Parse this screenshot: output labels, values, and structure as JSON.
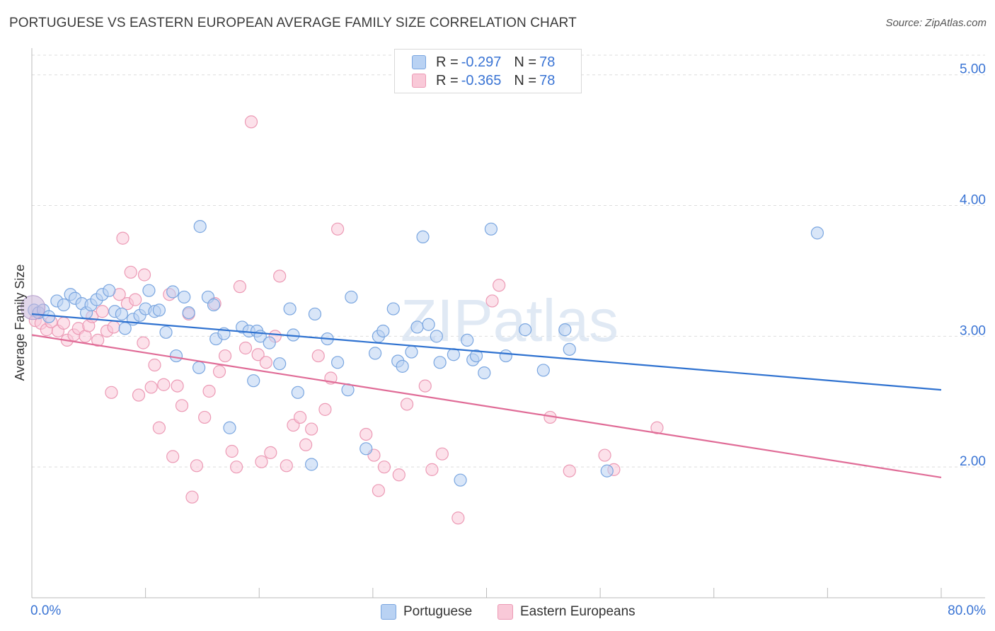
{
  "title": "PORTUGUESE VS EASTERN EUROPEAN AVERAGE FAMILY SIZE CORRELATION CHART",
  "source": "Source: ZipAtlas.com",
  "watermark": "ZIPatlas",
  "legend": {
    "r_label": "R = ",
    "n_label": "N = ",
    "rows": [
      {
        "r": "-0.297",
        "n": "78"
      },
      {
        "r": "-0.365",
        "n": "78"
      }
    ]
  },
  "bottom_legend": [
    "Portuguese",
    "Eastern Europeans"
  ],
  "colors": {
    "blue_fill": "#b9d2f3",
    "blue_stroke": "#7aa6e0",
    "blue_line": "#2f72d0",
    "pink_fill": "#f9c9d8",
    "pink_stroke": "#ec9ab5",
    "pink_line": "#e06c97",
    "axis_text": "#3a74d4",
    "grid": "#dddddd"
  },
  "chart_data": {
    "type": "scatter",
    "xlabel": "",
    "ylabel": "Average Family Size",
    "xlim": [
      0,
      80
    ],
    "ylim": [
      1.0,
      5.15
    ],
    "x_tick_labels": [
      "0.0%",
      "80.0%"
    ],
    "y_ticks": [
      2.0,
      3.0,
      4.0,
      5.0
    ],
    "y_tick_labels": [
      "2.00",
      "3.00",
      "4.00",
      "5.00"
    ],
    "series": [
      {
        "name": "Portuguese",
        "trend": {
          "x": [
            0,
            80
          ],
          "y": [
            3.17,
            2.59
          ]
        },
        "points": [
          [
            0.2,
            3.2
          ],
          [
            0.6,
            3.18
          ],
          [
            1.0,
            3.2
          ],
          [
            1.5,
            3.15
          ],
          [
            2.2,
            3.27
          ],
          [
            2.8,
            3.24
          ],
          [
            3.4,
            3.32
          ],
          [
            3.8,
            3.29
          ],
          [
            4.4,
            3.25
          ],
          [
            4.8,
            3.18
          ],
          [
            5.2,
            3.24
          ],
          [
            5.7,
            3.28
          ],
          [
            6.2,
            3.32
          ],
          [
            6.8,
            3.35
          ],
          [
            7.3,
            3.19
          ],
          [
            7.9,
            3.17
          ],
          [
            8.2,
            3.06
          ],
          [
            8.9,
            3.13
          ],
          [
            9.5,
            3.16
          ],
          [
            10.0,
            3.21
          ],
          [
            10.3,
            3.35
          ],
          [
            10.8,
            3.19
          ],
          [
            11.2,
            3.2
          ],
          [
            11.8,
            3.03
          ],
          [
            12.4,
            3.34
          ],
          [
            12.7,
            2.85
          ],
          [
            13.4,
            3.3
          ],
          [
            13.8,
            3.18
          ],
          [
            14.7,
            2.76
          ],
          [
            14.8,
            3.84
          ],
          [
            15.5,
            3.3
          ],
          [
            16.0,
            3.24
          ],
          [
            16.2,
            2.98
          ],
          [
            16.9,
            3.02
          ],
          [
            17.4,
            2.3
          ],
          [
            18.5,
            3.07
          ],
          [
            19.1,
            3.04
          ],
          [
            19.5,
            2.66
          ],
          [
            19.8,
            3.04
          ],
          [
            20.1,
            3.0
          ],
          [
            20.9,
            2.95
          ],
          [
            21.8,
            2.79
          ],
          [
            22.7,
            3.21
          ],
          [
            23.0,
            3.01
          ],
          [
            23.4,
            2.57
          ],
          [
            24.6,
            2.02
          ],
          [
            24.9,
            3.17
          ],
          [
            26.0,
            2.98
          ],
          [
            26.9,
            2.8
          ],
          [
            27.8,
            2.59
          ],
          [
            28.1,
            3.3
          ],
          [
            29.4,
            2.14
          ],
          [
            30.2,
            2.87
          ],
          [
            30.5,
            3.0
          ],
          [
            30.9,
            3.04
          ],
          [
            31.8,
            3.21
          ],
          [
            32.2,
            2.81
          ],
          [
            32.6,
            2.77
          ],
          [
            33.4,
            2.88
          ],
          [
            33.9,
            3.07
          ],
          [
            34.4,
            3.76
          ],
          [
            34.9,
            3.09
          ],
          [
            35.6,
            3.0
          ],
          [
            35.9,
            2.8
          ],
          [
            37.1,
            2.86
          ],
          [
            37.7,
            1.9
          ],
          [
            38.3,
            2.97
          ],
          [
            38.8,
            2.82
          ],
          [
            39.1,
            2.85
          ],
          [
            39.8,
            2.72
          ],
          [
            40.4,
            3.82
          ],
          [
            41.7,
            2.85
          ],
          [
            43.4,
            3.05
          ],
          [
            45.0,
            2.74
          ],
          [
            46.9,
            3.05
          ],
          [
            47.3,
            2.9
          ],
          [
            50.6,
            1.97
          ],
          [
            69.1,
            3.79
          ]
        ]
      },
      {
        "name": "Eastern Europeans",
        "trend": {
          "x": [
            0,
            80
          ],
          "y": [
            3.01,
            1.92
          ]
        },
        "points": [
          [
            0.3,
            3.12
          ],
          [
            0.8,
            3.1
          ],
          [
            1.3,
            3.05
          ],
          [
            1.7,
            3.11
          ],
          [
            2.3,
            3.04
          ],
          [
            2.8,
            3.1
          ],
          [
            3.1,
            2.97
          ],
          [
            3.7,
            3.01
          ],
          [
            4.1,
            3.06
          ],
          [
            4.7,
            3.0
          ],
          [
            5.0,
            3.08
          ],
          [
            5.3,
            3.15
          ],
          [
            5.8,
            2.97
          ],
          [
            6.2,
            3.19
          ],
          [
            6.6,
            3.04
          ],
          [
            7.0,
            2.57
          ],
          [
            7.2,
            3.07
          ],
          [
            7.7,
            3.32
          ],
          [
            8.0,
            3.75
          ],
          [
            8.4,
            3.25
          ],
          [
            8.7,
            3.49
          ],
          [
            9.1,
            3.28
          ],
          [
            9.4,
            2.55
          ],
          [
            9.8,
            2.95
          ],
          [
            9.9,
            3.47
          ],
          [
            10.5,
            2.61
          ],
          [
            10.8,
            2.78
          ],
          [
            11.2,
            2.3
          ],
          [
            11.6,
            2.63
          ],
          [
            12.1,
            3.32
          ],
          [
            12.4,
            2.08
          ],
          [
            12.8,
            2.62
          ],
          [
            13.2,
            2.47
          ],
          [
            13.8,
            3.17
          ],
          [
            14.1,
            1.77
          ],
          [
            14.5,
            2.01
          ],
          [
            15.2,
            2.38
          ],
          [
            15.6,
            2.58
          ],
          [
            16.1,
            3.25
          ],
          [
            16.5,
            2.73
          ],
          [
            17.0,
            2.85
          ],
          [
            17.6,
            2.12
          ],
          [
            18.0,
            2.0
          ],
          [
            18.3,
            3.38
          ],
          [
            18.8,
            2.91
          ],
          [
            19.3,
            4.64
          ],
          [
            19.9,
            2.86
          ],
          [
            20.2,
            2.04
          ],
          [
            20.6,
            2.8
          ],
          [
            21.0,
            2.11
          ],
          [
            21.4,
            3.0
          ],
          [
            21.8,
            3.46
          ],
          [
            22.4,
            2.01
          ],
          [
            23.0,
            2.32
          ],
          [
            23.6,
            2.38
          ],
          [
            24.1,
            2.17
          ],
          [
            24.6,
            2.29
          ],
          [
            25.2,
            2.85
          ],
          [
            25.8,
            2.44
          ],
          [
            26.3,
            2.68
          ],
          [
            26.9,
            3.82
          ],
          [
            29.4,
            2.25
          ],
          [
            30.1,
            2.09
          ],
          [
            30.5,
            1.82
          ],
          [
            31.0,
            2.0
          ],
          [
            32.3,
            1.94
          ],
          [
            33.0,
            2.48
          ],
          [
            34.6,
            2.62
          ],
          [
            35.2,
            1.98
          ],
          [
            36.1,
            2.1
          ],
          [
            37.5,
            1.61
          ],
          [
            40.5,
            3.27
          ],
          [
            41.1,
            3.39
          ],
          [
            45.6,
            2.38
          ],
          [
            47.3,
            1.97
          ],
          [
            50.4,
            2.09
          ],
          [
            51.2,
            1.98
          ],
          [
            55.0,
            2.3
          ]
        ]
      }
    ]
  }
}
